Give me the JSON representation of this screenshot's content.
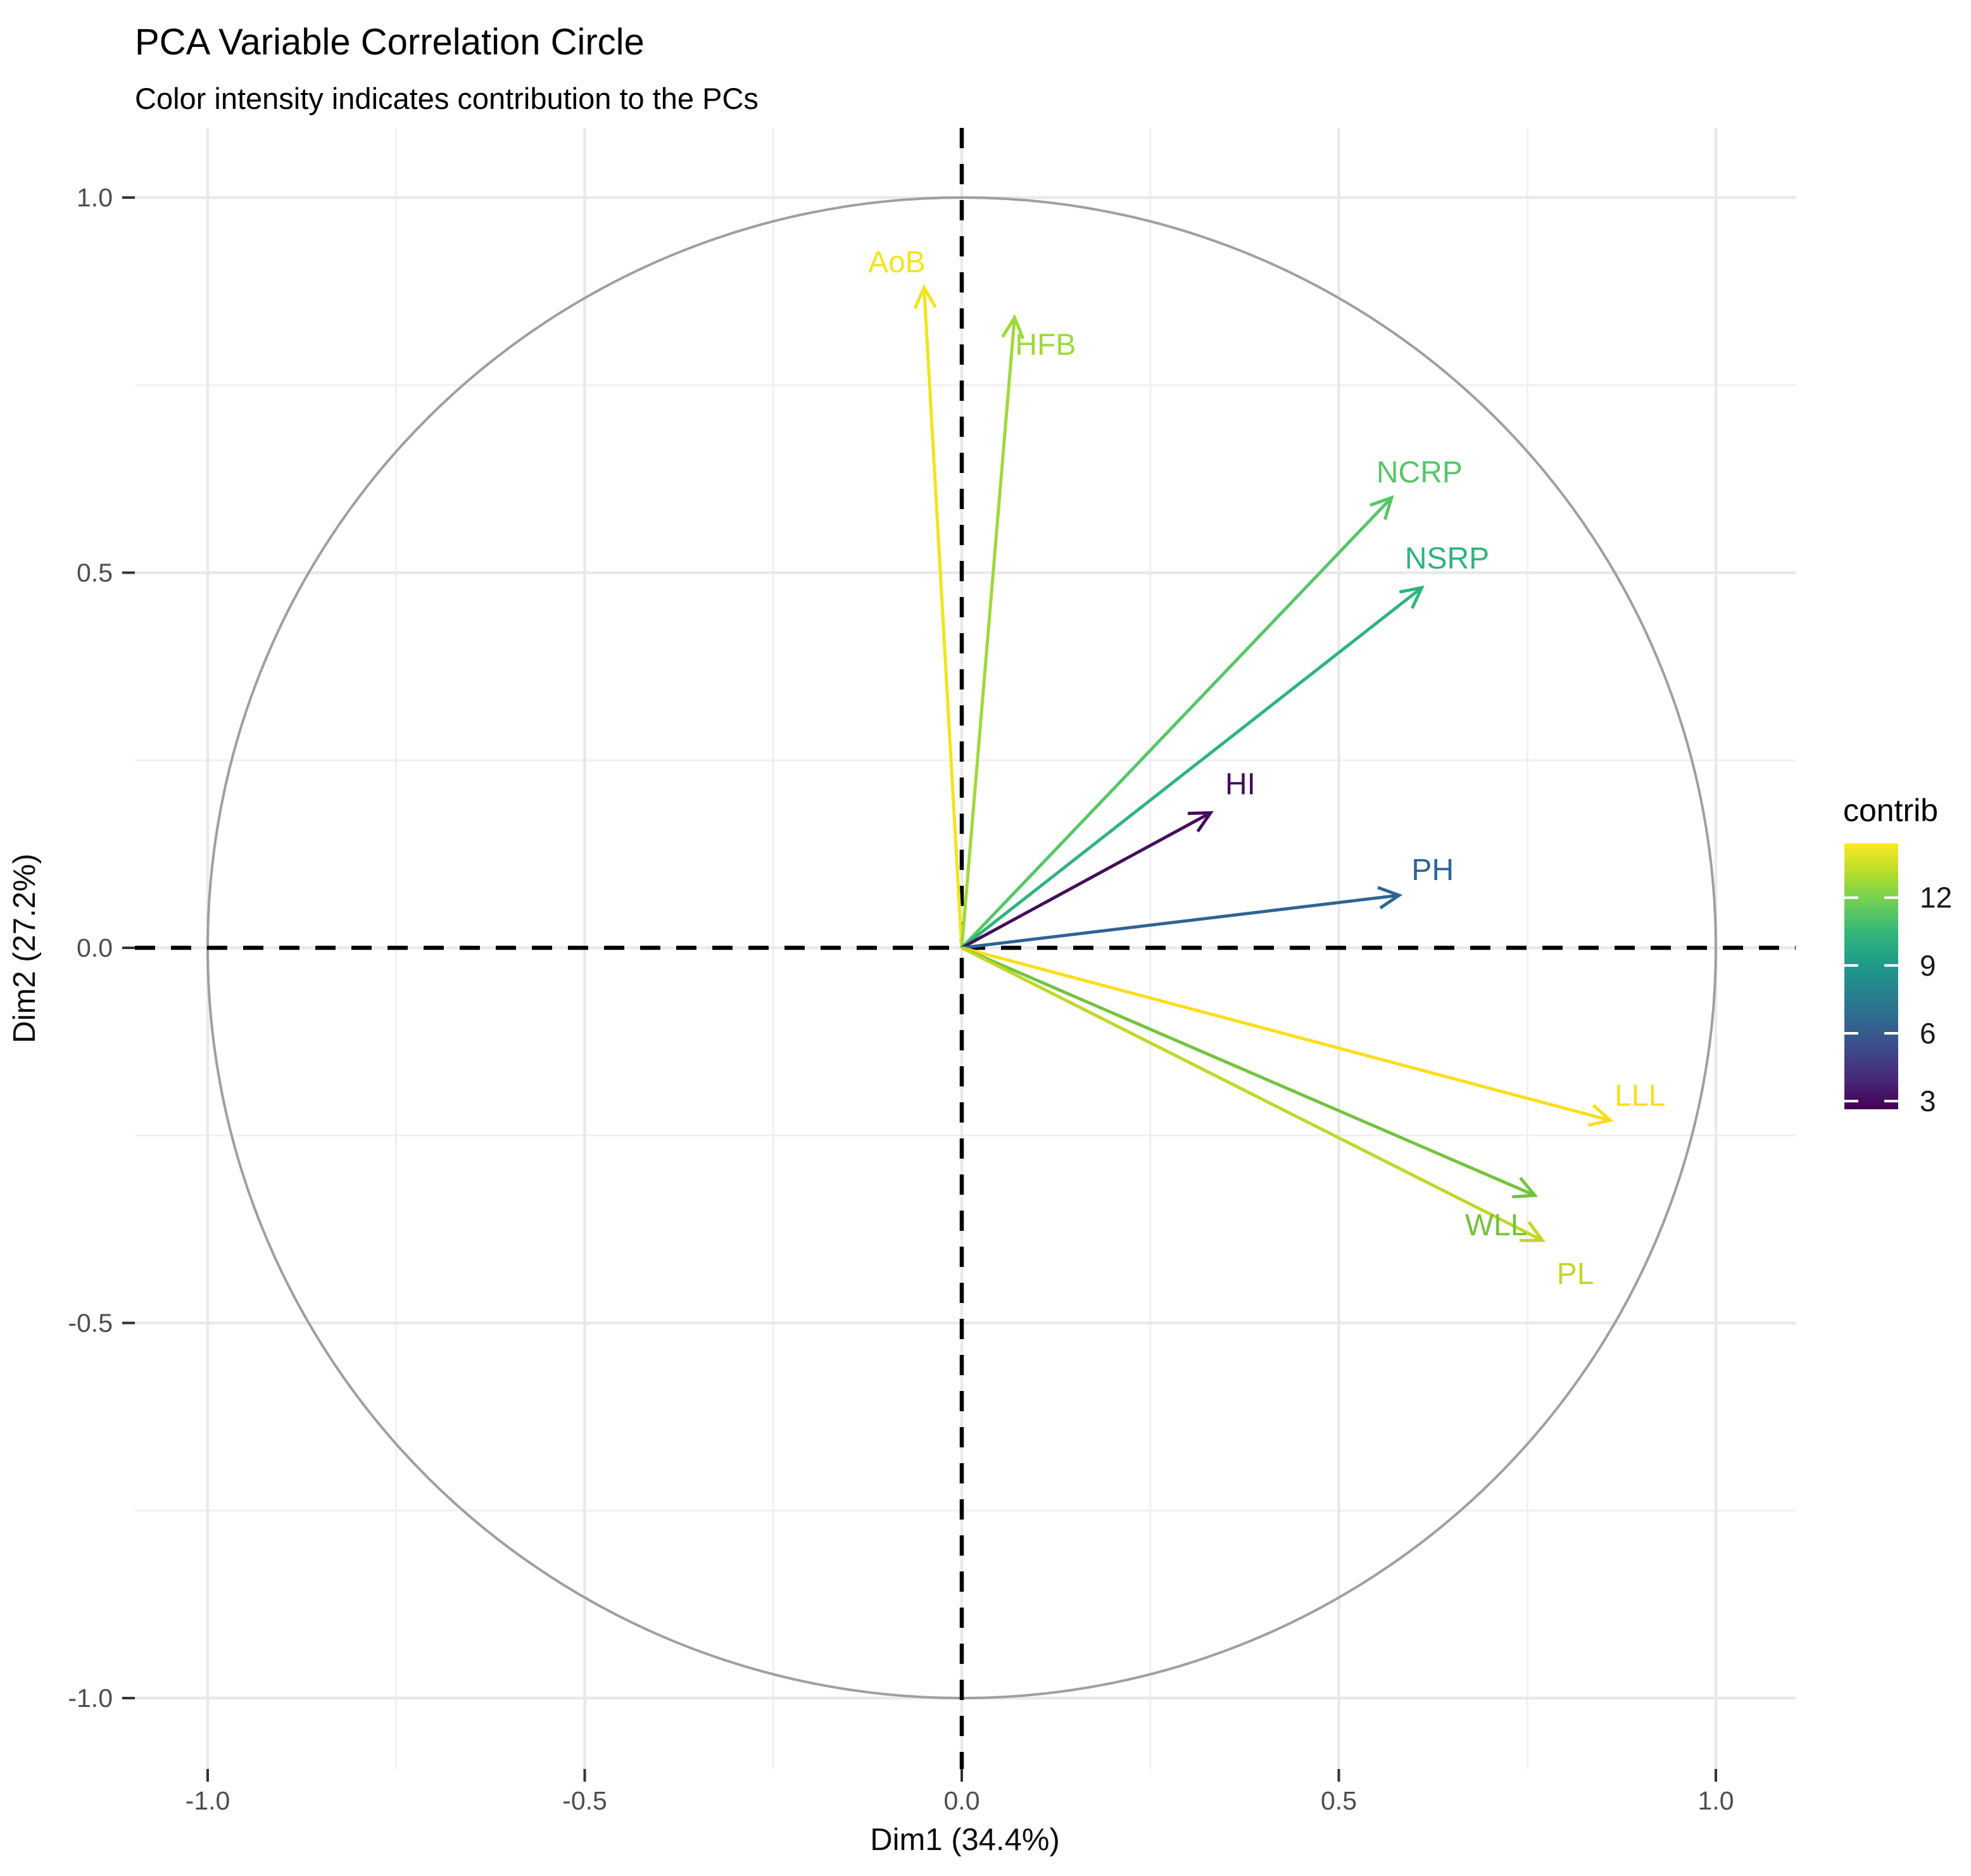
{
  "chart_data": {
    "type": "scatter",
    "variant": "pca-variable-correlation-circle",
    "title": "PCA Variable Correlation Circle",
    "subtitle": "Color intensity indicates contribution to the PCs",
    "xlabel": "Dim1 (34.4%)",
    "ylabel": "Dim2 (27.2%)",
    "xlim": [
      -1.13,
      1.11
    ],
    "ylim": [
      -1.09,
      1.09
    ],
    "x_ticks": {
      "values": [
        -1.0,
        -0.5,
        0.0,
        0.5,
        1.0
      ],
      "labels": [
        "-1.0",
        "-0.5",
        "0.0",
        "0.5",
        "1.0"
      ]
    },
    "y_ticks": {
      "values": [
        -1.0,
        -0.5,
        0.0,
        0.5,
        1.0
      ],
      "labels": [
        "-1.0",
        "-0.5",
        "0.0",
        "0.5",
        "1.0"
      ]
    },
    "grid": {
      "major_values": [
        -1.0,
        -0.5,
        0.0,
        0.5,
        1.0
      ],
      "minor_values": [
        -0.75,
        -0.25,
        0.25,
        0.75
      ],
      "major_color": "#e9e9e9",
      "minor_color": "#f0f0f0"
    },
    "unit_circle": {
      "cx": 0,
      "cy": 0,
      "radius": 1.0,
      "color": "#9f9f9f"
    },
    "zero_axes": {
      "style": "dashed",
      "color": "#000000"
    },
    "series": [
      {
        "name": "AoB",
        "x": -0.05,
        "y": 0.88,
        "contrib": 14.1,
        "color": "#f2e41e",
        "label_dx": -43,
        "label_dy": -40
      },
      {
        "name": "HFB",
        "x": 0.07,
        "y": 0.84,
        "contrib": 12.7,
        "color": "#9ed93a",
        "label_dx": 49,
        "label_dy": 43
      },
      {
        "name": "NCRP",
        "x": 0.57,
        "y": 0.6,
        "contrib": 11.3,
        "color": "#56c667",
        "label_dx": 44,
        "label_dy": -40
      },
      {
        "name": "NSRP",
        "x": 0.61,
        "y": 0.48,
        "contrib": 10.2,
        "color": "#2fb47c",
        "label_dx": 40,
        "label_dy": -46
      },
      {
        "name": "HI",
        "x": 0.33,
        "y": 0.18,
        "contrib": 2.7,
        "color": "#440d5a",
        "label_dx": 47,
        "label_dy": -45
      },
      {
        "name": "PH",
        "x": 0.58,
        "y": 0.07,
        "contrib": 6.4,
        "color": "#2d6493",
        "label_dx": 53,
        "label_dy": -40
      },
      {
        "name": "LLL",
        "x": 0.86,
        "y": -0.23,
        "contrib": 14.4,
        "color": "#fcdd1a",
        "label_dx": 47,
        "label_dy": -39
      },
      {
        "name": "WLL",
        "x": 0.76,
        "y": -0.33,
        "contrib": 11.8,
        "color": "#74c33e",
        "label_dx": -61,
        "label_dy": 47
      },
      {
        "name": "PL",
        "x": 0.77,
        "y": -0.39,
        "contrib": 13.2,
        "color": "#c3d628",
        "label_dx": 52,
        "label_dy": 53
      }
    ],
    "legend": {
      "title": "contrib",
      "position": "right",
      "tick_values": [
        12,
        9,
        6,
        3
      ],
      "tick_labels": [
        "12",
        "9",
        "6",
        "3"
      ],
      "range": [
        2.64,
        14.4
      ],
      "palette": "viridis",
      "gradient_top_to_bottom": [
        "#fde725",
        "#b5de2b",
        "#6ece58",
        "#35b779",
        "#1f9e89",
        "#26828e",
        "#31688e",
        "#3e4989",
        "#482878",
        "#440154"
      ]
    }
  }
}
